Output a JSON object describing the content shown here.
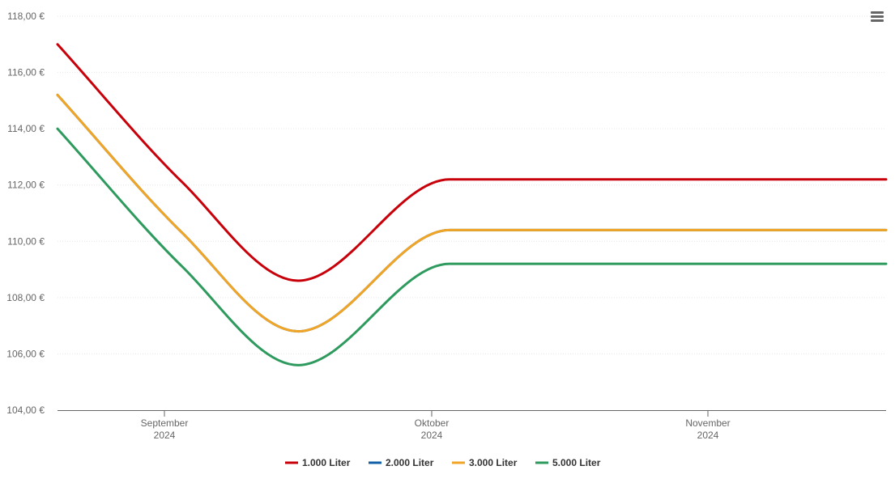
{
  "menu": {
    "icon": "hamburger-menu-icon"
  },
  "chart_data": {
    "type": "line",
    "title": "",
    "xlabel": "",
    "ylabel": "",
    "ylim": [
      104,
      118
    ],
    "yticks": [
      {
        "value": 104,
        "label": "104,00 €"
      },
      {
        "value": 106,
        "label": "106,00 €"
      },
      {
        "value": 108,
        "label": "108,00 €"
      },
      {
        "value": 110,
        "label": "110,00 €"
      },
      {
        "value": 112,
        "label": "112,00 €"
      },
      {
        "value": 114,
        "label": "114,00 €"
      },
      {
        "value": 116,
        "label": "116,00 €"
      },
      {
        "value": 118,
        "label": "118,00 €"
      }
    ],
    "xlim": [
      "2024-08-20",
      "2024-11-21"
    ],
    "xticks": [
      {
        "date": "2024-09-01",
        "month": "September",
        "year": "2024"
      },
      {
        "date": "2024-10-01",
        "month": "Oktober",
        "year": "2024"
      },
      {
        "date": "2024-11-01",
        "month": "November",
        "year": "2024"
      }
    ],
    "grid": true,
    "legend": "bottom",
    "x": [
      "2024-08-20",
      "2024-09-03",
      "2024-09-16",
      "2024-10-03",
      "2024-11-21"
    ],
    "series": [
      {
        "name": "1.000 Liter",
        "color": "#c8000a",
        "values": [
          117.0,
          112.1,
          108.6,
          112.2,
          112.2
        ]
      },
      {
        "name": "2.000 Liter",
        "color": "#1060a8",
        "values": [
          115.2,
          110.3,
          106.8,
          110.4,
          110.4
        ]
      },
      {
        "name": "3.000 Liter",
        "color": "#f0a526",
        "values": [
          115.2,
          110.3,
          106.8,
          110.4,
          110.4
        ]
      },
      {
        "name": "5.000 Liter",
        "color": "#2e9a5e",
        "values": [
          114.0,
          109.1,
          105.6,
          109.2,
          109.2
        ]
      }
    ]
  }
}
